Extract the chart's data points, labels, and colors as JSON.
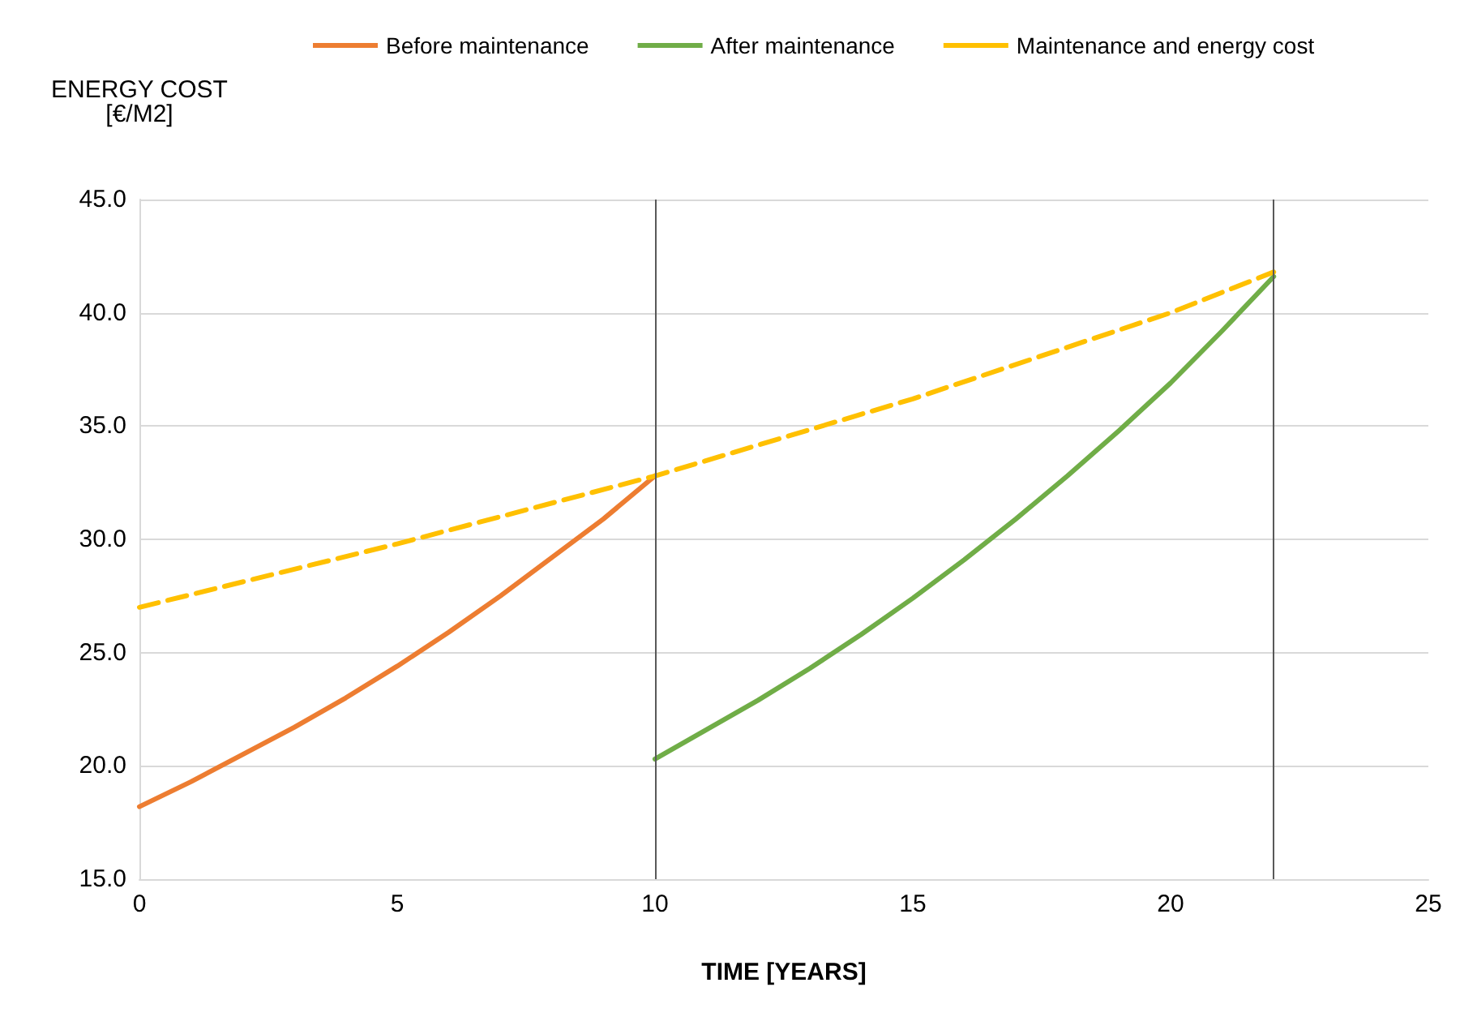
{
  "chart_data": {
    "type": "line",
    "xlabel": "TIME [YEARS]",
    "ylabel": "ENERGY COST\n[€/M2]",
    "series": [
      {
        "name": "Before maintenance",
        "color": "#ed7d31",
        "x": [
          0,
          1,
          2,
          3,
          4,
          5,
          6,
          7,
          8,
          9,
          10
        ],
        "values": [
          18.2,
          19.3,
          20.5,
          21.7,
          23.0,
          24.4,
          25.9,
          27.5,
          29.2,
          30.9,
          32.8
        ]
      },
      {
        "name": "After maintenance",
        "color": "#70ad47",
        "x": [
          10,
          11,
          12,
          13,
          14,
          15,
          16,
          17,
          18,
          19,
          20,
          21,
          22
        ],
        "values": [
          20.3,
          21.6,
          22.9,
          24.3,
          25.8,
          27.4,
          29.1,
          30.9,
          32.8,
          34.8,
          36.9,
          39.2,
          41.6
        ]
      },
      {
        "name": "Maintenance and energy cost",
        "color": "#ffc000",
        "line_style": "dashed",
        "x": [
          0,
          5,
          10,
          15,
          20,
          22
        ],
        "values": [
          27.0,
          29.8,
          32.8,
          36.2,
          40.0,
          41.8
        ]
      }
    ],
    "xlim": [
      0,
      25
    ],
    "xticks": [
      0,
      5,
      10,
      15,
      20,
      25
    ],
    "ylim": [
      15,
      45
    ],
    "yticks": [
      {
        "value": 15,
        "label": "15.0"
      },
      {
        "value": 20,
        "label": "20.0"
      },
      {
        "value": 25,
        "label": "25.0"
      },
      {
        "value": 30,
        "label": "30.0"
      },
      {
        "value": 35,
        "label": "35.0"
      },
      {
        "value": 40,
        "label": "40.0"
      },
      {
        "value": 45,
        "label": "45.0"
      }
    ],
    "ref_lines": [
      {
        "axis": "x",
        "value": 10,
        "color": "#595959"
      },
      {
        "axis": "x",
        "value": 22,
        "color": "#595959"
      }
    ],
    "grid": "y",
    "legend": "top",
    "marker": "none"
  }
}
